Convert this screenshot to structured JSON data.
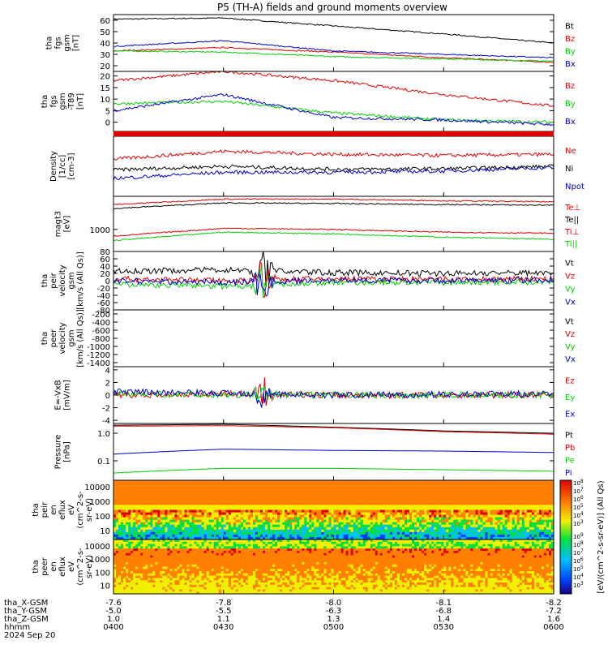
{
  "title": "P5 (TH-A) fields and ground moments overview",
  "colors": {
    "black": "#000000",
    "red": "#e00000",
    "green": "#00d000",
    "blue": "#0000d0"
  },
  "panels": [
    {
      "id": "fgs-gsm",
      "ylabel": [
        "tha",
        "fgs",
        "gsm",
        "[nT]"
      ],
      "ticks": [
        "60",
        "50",
        "40",
        "30",
        "20"
      ],
      "legend": [
        {
          "name": "Bt",
          "color": "black"
        },
        {
          "name": "Bz",
          "color": "red"
        },
        {
          "name": "By",
          "color": "green"
        },
        {
          "name": "Bx",
          "color": "blue"
        }
      ]
    },
    {
      "id": "fgs-gsm-filtered",
      "ylabel": [
        "tha",
        "fgs",
        "gsm",
        "-T89",
        "[nT]"
      ],
      "ticks": [
        "20",
        "15",
        "10",
        "5",
        "0"
      ],
      "legend": [
        {
          "name": "Bz",
          "color": "red"
        },
        {
          "name": "By",
          "color": "green"
        },
        {
          "name": "Bx",
          "color": "blue"
        }
      ]
    },
    {
      "id": "density",
      "ylabel": [
        "Density",
        "[1/cc]",
        "[cm-3]"
      ],
      "ticks": [],
      "legend": [
        {
          "name": "Ne",
          "color": "red"
        },
        {
          "name": "Ni",
          "color": "black"
        },
        {
          "name": "Npot",
          "color": "blue"
        }
      ]
    },
    {
      "id": "temperature",
      "ylabel": [
        "magt3",
        "[eV]"
      ],
      "ticks": [
        "1000"
      ],
      "legend": [
        {
          "name": "Te⊥",
          "color": "red"
        },
        {
          "name": "Te||",
          "color": "black"
        },
        {
          "name": "Ti⊥",
          "color": "red"
        },
        {
          "name": "Ti||",
          "color": "green"
        }
      ]
    },
    {
      "id": "peir-velocity",
      "ylabel": [
        "tha",
        "peir",
        "velocity",
        "gsm",
        "[km/s (All Qs)]"
      ],
      "ticks": [
        "80",
        "60",
        "40",
        "20",
        "0",
        "-20",
        "-40",
        "-60",
        "-80"
      ],
      "legend": [
        {
          "name": "Vt",
          "color": "black"
        },
        {
          "name": "Vz",
          "color": "red"
        },
        {
          "name": "Vy",
          "color": "green"
        },
        {
          "name": "Vx",
          "color": "blue"
        }
      ]
    },
    {
      "id": "peer-velocity",
      "ylabel": [
        "tha",
        "peer",
        "velocity",
        "gsm",
        "[km/s (All Qs)]"
      ],
      "ticks": [
        "-200",
        "-400",
        "-600",
        "-800",
        "-1000",
        "-1200",
        "-1400"
      ],
      "legend": [
        {
          "name": "Vt",
          "color": "black"
        },
        {
          "name": "Vz",
          "color": "red"
        },
        {
          "name": "Vy",
          "color": "green"
        },
        {
          "name": "Vx",
          "color": "blue"
        }
      ]
    },
    {
      "id": "efield",
      "ylabel": [
        "E=-VxB",
        "[mV/m]"
      ],
      "ticks": [
        "4",
        "2",
        "0",
        "-2",
        "-4"
      ],
      "legend": [
        {
          "name": "Ez",
          "color": "red"
        },
        {
          "name": "Ey",
          "color": "green"
        },
        {
          "name": "Ex",
          "color": "blue"
        }
      ]
    },
    {
      "id": "pressure",
      "ylabel": [
        "Pressure",
        "[nPa]"
      ],
      "ticks": [
        "1.0",
        "0.1"
      ],
      "legend": [
        {
          "name": "Pt",
          "color": "black"
        },
        {
          "name": "Pb",
          "color": "red"
        },
        {
          "name": "Pe",
          "color": "green"
        },
        {
          "name": "Pi",
          "color": "blue"
        }
      ]
    },
    {
      "id": "peir-spec",
      "ylabel": [
        "tha",
        "peir",
        "en",
        "eflux",
        "eV",
        "(cm^2-s-",
        "sr-eV)"
      ],
      "ticks": [
        "10000",
        "1000",
        "100",
        "10"
      ]
    },
    {
      "id": "peer-spec",
      "ylabel": [
        "tha",
        "peer",
        "en",
        "eflux",
        "eV",
        "(cm^2-s-",
        "sr-eV)"
      ],
      "ticks": [
        "10000",
        "1000",
        "100",
        "10"
      ]
    }
  ],
  "colorbar": {
    "label": "[eV/(cm^2-s-sr-eV)] (All Qs)",
    "upper_ticks": [
      "10^8",
      "10^7",
      "10^6",
      "10^5",
      "10^4",
      "10^3"
    ],
    "lower_ticks": [
      "10^9",
      "10^8",
      "10^7",
      "10^6",
      "10^5",
      "10^4",
      "10^3"
    ]
  },
  "xaxis": {
    "row_labels": [
      "tha_X-GSM",
      "tha_Y-GSM",
      "tha_Z-GSM",
      "hhmm",
      "2024 Sep 20"
    ],
    "columns": [
      {
        "x": "-7.6",
        "y": "-5.0",
        "z": "1.0",
        "t": "0400"
      },
      {
        "x": "-7.8",
        "y": "-5.5",
        "z": "1.1",
        "t": "0430"
      },
      {
        "x": "-8.0",
        "y": "-6.3",
        "z": "1.3",
        "t": "0500"
      },
      {
        "x": "-8.1",
        "y": "-6.8",
        "z": "1.4",
        "t": "0530"
      },
      {
        "x": "-8.2",
        "y": "-7.2",
        "z": "1.6",
        "t": "0600"
      }
    ]
  },
  "chart_data": [
    {
      "type": "line",
      "title": "P5 (TH-A) fields and ground moments overview",
      "x": [
        "0400",
        "0430",
        "0500",
        "0530",
        "0600"
      ],
      "ylim": [
        15,
        65
      ],
      "series": [
        {
          "name": "Bt",
          "values": [
            61,
            62,
            55,
            48,
            40
          ]
        },
        {
          "name": "Bz",
          "values": [
            33,
            36,
            32,
            27,
            23
          ]
        },
        {
          "name": "By",
          "values": [
            33,
            32,
            28,
            26,
            24
          ]
        },
        {
          "name": "Bx",
          "values": [
            37,
            42,
            33,
            30,
            27
          ]
        }
      ]
    },
    {
      "type": "line",
      "x": [
        "0400",
        "0430",
        "0500",
        "0530",
        "0600"
      ],
      "ylim": [
        -4,
        22
      ],
      "series": [
        {
          "name": "Bz",
          "values": [
            18,
            22,
            18,
            12,
            7
          ]
        },
        {
          "name": "By",
          "values": [
            8,
            9,
            4,
            1,
            0
          ]
        },
        {
          "name": "Bx",
          "values": [
            5,
            12,
            2,
            1,
            -1
          ]
        }
      ]
    },
    {
      "type": "line",
      "x": [
        "0400",
        "0430",
        "0500",
        "0530",
        "0600"
      ],
      "series": [
        {
          "name": "Ne",
          "values": [
            0.62,
            0.75,
            0.7,
            0.68,
            0.7
          ]
        },
        {
          "name": "Ni",
          "values": [
            0.44,
            0.5,
            0.45,
            0.46,
            0.5
          ]
        },
        {
          "name": "Npot",
          "values": [
            0.3,
            0.4,
            0.4,
            0.42,
            0.48
          ]
        }
      ]
    },
    {
      "type": "line",
      "x": [
        "0400",
        "0430",
        "0500",
        "0530",
        "0600"
      ],
      "series": [
        {
          "name": "Te⊥",
          "values": [
            0.85,
            0.95,
            0.95,
            0.92,
            0.9
          ]
        },
        {
          "name": "Te||",
          "values": [
            0.78,
            0.88,
            0.87,
            0.85,
            0.84
          ]
        },
        {
          "name": "Ti⊥",
          "values": [
            0.28,
            0.42,
            0.4,
            0.35,
            0.33
          ]
        },
        {
          "name": "Ti||",
          "values": [
            0.2,
            0.35,
            0.32,
            0.26,
            0.22
          ]
        }
      ]
    },
    {
      "type": "line",
      "x": [
        "0400",
        "0430",
        "0500",
        "0530",
        "0600"
      ],
      "ylim": [
        -80,
        80
      ],
      "series": [
        {
          "name": "Vt",
          "values": [
            25,
            30,
            22,
            20,
            22
          ]
        },
        {
          "name": "Vz",
          "values": [
            5,
            0,
            5,
            3,
            5
          ]
        },
        {
          "name": "Vy",
          "values": [
            -10,
            -15,
            -5,
            -5,
            -3
          ]
        },
        {
          "name": "Vx",
          "values": [
            0,
            -5,
            2,
            0,
            2
          ]
        }
      ]
    },
    {
      "type": "line",
      "x": [
        "0400",
        "0430",
        "0500",
        "0530",
        "0600"
      ],
      "ylim": [
        -1500,
        -100
      ],
      "series": []
    },
    {
      "type": "line",
      "x": [
        "0400",
        "0430",
        "0500",
        "0530",
        "0600"
      ],
      "ylim": [
        -4.5,
        4.5
      ],
      "series": [
        {
          "name": "Ez",
          "values": [
            0,
            0.2,
            0,
            0,
            0
          ]
        },
        {
          "name": "Ey",
          "values": [
            0.3,
            0,
            0,
            0,
            0
          ]
        },
        {
          "name": "Ex",
          "values": [
            0.5,
            0.3,
            0,
            0.1,
            0.2
          ]
        }
      ]
    },
    {
      "type": "line",
      "x": [
        "0400",
        "0430",
        "0500",
        "0530",
        "0600"
      ],
      "series": [
        {
          "name": "Pt",
          "values": [
            1.4,
            1.5,
            1.2,
            0.9,
            0.75
          ]
        },
        {
          "name": "Pb",
          "values": [
            1.3,
            1.35,
            1.15,
            0.85,
            0.7
          ]
        },
        {
          "name": "Pe",
          "values": [
            0.035,
            0.05,
            0.05,
            0.045,
            0.04
          ]
        },
        {
          "name": "Pi",
          "values": [
            0.15,
            0.22,
            0.2,
            0.19,
            0.17
          ]
        }
      ]
    },
    {
      "type": "heatmap",
      "x": [
        "0400",
        "0430",
        "0500",
        "0530",
        "0600"
      ],
      "ylabel": "eV",
      "ylim": [
        5,
        25000
      ]
    },
    {
      "type": "heatmap",
      "x": [
        "0400",
        "0430",
        "0500",
        "0530",
        "0600"
      ],
      "ylabel": "eV",
      "ylim": [
        5,
        25000
      ]
    }
  ]
}
